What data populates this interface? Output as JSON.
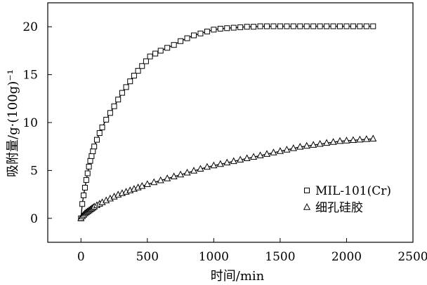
{
  "chart_data": {
    "type": "scatter",
    "xlabel": "时间/min",
    "ylabel": "吸附量/g·(100g)⁻¹",
    "xlim": [
      -250,
      2500
    ],
    "ylim": [
      -2.5,
      22.5
    ],
    "xticks": [
      0,
      500,
      1000,
      1500,
      2000,
      2500
    ],
    "yticks": [
      0,
      5,
      10,
      15,
      20
    ],
    "grid": false,
    "legend_position": "bottom-right",
    "series": [
      {
        "name": "MIL-101(Cr)",
        "marker": "square",
        "fit_line": true,
        "x": [
          0,
          10,
          20,
          30,
          40,
          50,
          60,
          70,
          80,
          90,
          100,
          120,
          140,
          160,
          190,
          220,
          250,
          280,
          310,
          340,
          370,
          400,
          430,
          460,
          490,
          520,
          560,
          600,
          650,
          700,
          750,
          800,
          850,
          900,
          950,
          1000,
          1050,
          1100,
          1150,
          1200,
          1250,
          1300,
          1350,
          1400,
          1450,
          1500,
          1550,
          1600,
          1650,
          1700,
          1750,
          1800,
          1850,
          1900,
          1950,
          2000,
          2050,
          2100,
          2150,
          2200
        ],
        "y": [
          0,
          1.5,
          2.4,
          3.2,
          4.0,
          4.7,
          5.4,
          6.0,
          6.5,
          7.0,
          7.5,
          8.2,
          8.9,
          9.5,
          10.3,
          11.0,
          11.7,
          12.4,
          13.1,
          13.7,
          14.3,
          14.9,
          15.4,
          15.9,
          16.4,
          16.9,
          17.2,
          17.5,
          17.8,
          18.1,
          18.5,
          18.8,
          19.1,
          19.3,
          19.5,
          19.7,
          19.8,
          19.85,
          19.9,
          19.95,
          20.0,
          20.0,
          20.05,
          20.05,
          20.05,
          20.05,
          20.05,
          20.05,
          20.05,
          20.05,
          20.05,
          20.05,
          20.05,
          20.05,
          20.05,
          20.05,
          20.05,
          20.05,
          20.05,
          20.05
        ]
      },
      {
        "name": "细孔硅胶",
        "marker": "triangle",
        "fit_line": true,
        "x": [
          0,
          10,
          20,
          30,
          40,
          50,
          60,
          70,
          80,
          90,
          100,
          120,
          140,
          160,
          190,
          220,
          250,
          280,
          310,
          340,
          370,
          400,
          430,
          460,
          500,
          550,
          600,
          650,
          700,
          750,
          800,
          850,
          900,
          950,
          1000,
          1050,
          1100,
          1150,
          1200,
          1250,
          1300,
          1350,
          1400,
          1450,
          1500,
          1550,
          1600,
          1650,
          1700,
          1750,
          1800,
          1850,
          1900,
          1950,
          2000,
          2050,
          2100,
          2150,
          2200
        ],
        "y": [
          0,
          0.2,
          0.35,
          0.5,
          0.6,
          0.7,
          0.8,
          0.9,
          1.0,
          1.1,
          1.2,
          1.35,
          1.5,
          1.65,
          1.85,
          2.05,
          2.25,
          2.45,
          2.6,
          2.75,
          2.9,
          3.05,
          3.2,
          3.35,
          3.55,
          3.75,
          3.95,
          4.15,
          4.35,
          4.55,
          4.75,
          4.95,
          5.15,
          5.35,
          5.5,
          5.65,
          5.8,
          5.95,
          6.1,
          6.25,
          6.4,
          6.55,
          6.7,
          6.85,
          7.0,
          7.15,
          7.3,
          7.45,
          7.55,
          7.65,
          7.75,
          7.85,
          7.95,
          8.05,
          8.1,
          8.15,
          8.2,
          8.25,
          8.3
        ]
      }
    ]
  },
  "colors": {
    "ink": "#000000",
    "background": "#ffffff"
  }
}
